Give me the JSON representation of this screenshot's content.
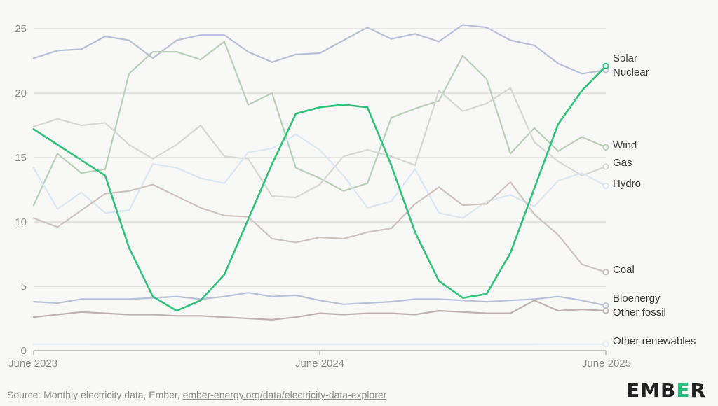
{
  "chart_data": {
    "type": "line",
    "x": [
      "2023-06",
      "2023-07",
      "2023-08",
      "2023-09",
      "2023-10",
      "2023-11",
      "2023-12",
      "2024-01",
      "2024-02",
      "2024-03",
      "2024-04",
      "2024-05",
      "2024-06",
      "2024-07",
      "2024-08",
      "2024-09",
      "2024-10",
      "2024-11",
      "2024-12",
      "2025-01",
      "2025-02",
      "2025-03",
      "2025-04",
      "2025-05",
      "2025-06"
    ],
    "x_tick_labels": [
      "June 2023",
      "June 2024",
      "June 2025"
    ],
    "y_ticks": [
      0,
      5,
      10,
      15,
      20,
      25
    ],
    "ylim": [
      0,
      25.5
    ],
    "grid": true,
    "legend": "inline labels at right end of lines",
    "series": [
      {
        "name": "Nuclear",
        "color": "#b8bfd9",
        "values": [
          22.7,
          23.3,
          23.4,
          24.4,
          24.1,
          22.7,
          24.1,
          24.5,
          24.5,
          23.2,
          22.4,
          23.0,
          23.1,
          24.1,
          25.1,
          24.2,
          24.6,
          24.0,
          25.3,
          25.1,
          24.1,
          23.7,
          22.3,
          21.5,
          21.8
        ]
      },
      {
        "name": "Wind",
        "color": "#b8d0b8",
        "values": [
          11.3,
          15.3,
          13.8,
          14.1,
          21.5,
          23.2,
          23.2,
          22.6,
          24.0,
          19.1,
          20.0,
          14.2,
          13.4,
          12.4,
          13.0,
          18.1,
          18.8,
          19.4,
          22.9,
          21.1,
          15.3,
          17.3,
          15.5,
          16.6,
          15.8
        ]
      },
      {
        "name": "Gas",
        "color": "#d7d7d7",
        "values": [
          17.4,
          18.0,
          17.5,
          17.7,
          16.0,
          14.9,
          16.0,
          17.5,
          15.1,
          14.9,
          12.0,
          11.9,
          12.9,
          15.1,
          15.6,
          15.1,
          14.4,
          20.2,
          18.6,
          19.2,
          20.4,
          16.2,
          14.7,
          13.6,
          14.3
        ]
      },
      {
        "name": "Hydro",
        "color": "#dbe8f3",
        "values": [
          14.2,
          11.0,
          12.3,
          10.7,
          10.9,
          14.5,
          14.2,
          13.4,
          13.0,
          15.4,
          15.7,
          16.8,
          15.6,
          13.6,
          11.1,
          11.6,
          14.1,
          10.7,
          10.3,
          11.6,
          12.1,
          11.2,
          13.2,
          13.8,
          12.8
        ]
      },
      {
        "name": "Coal",
        "color": "#cec3bf",
        "values": [
          10.3,
          9.6,
          10.9,
          12.2,
          12.4,
          12.9,
          12.0,
          11.1,
          10.5,
          10.4,
          8.7,
          8.4,
          8.8,
          8.7,
          9.2,
          9.5,
          11.4,
          12.7,
          11.3,
          11.4,
          13.1,
          10.6,
          9.0,
          6.7,
          6.1
        ]
      },
      {
        "name": "Bioenergy",
        "color": "#b9c1d8",
        "values": [
          3.8,
          3.7,
          4.0,
          4.0,
          4.0,
          4.1,
          4.2,
          4.0,
          4.2,
          4.5,
          4.2,
          4.3,
          3.9,
          3.6,
          3.7,
          3.8,
          4.0,
          4.0,
          3.9,
          3.8,
          3.9,
          4.0,
          4.2,
          3.9,
          3.5
        ]
      },
      {
        "name": "Other fossil",
        "color": "#bdb2af",
        "values": [
          2.6,
          2.8,
          3.0,
          2.9,
          2.8,
          2.8,
          2.7,
          2.7,
          2.6,
          2.5,
          2.4,
          2.6,
          2.9,
          2.8,
          2.9,
          2.9,
          2.8,
          3.1,
          3.0,
          2.9,
          2.9,
          3.9,
          3.1,
          3.2,
          3.1
        ]
      },
      {
        "name": "Other renewables",
        "color": "#e2ebf2",
        "values": [
          0.5,
          0.5,
          0.5,
          0.5,
          0.5,
          0.5,
          0.5,
          0.5,
          0.5,
          0.5,
          0.5,
          0.5,
          0.5,
          0.5,
          0.5,
          0.5,
          0.5,
          0.5,
          0.5,
          0.5,
          0.5,
          0.5,
          0.5,
          0.5,
          0.5
        ]
      },
      {
        "name": "Solar",
        "color": "#2fc27a",
        "values": [
          17.2,
          16.0,
          14.8,
          13.6,
          8.0,
          4.2,
          3.1,
          3.9,
          5.9,
          10.2,
          14.5,
          18.4,
          18.9,
          19.1,
          18.9,
          14.4,
          9.2,
          5.4,
          4.1,
          4.4,
          7.6,
          12.6,
          17.6,
          20.2,
          22.1
        ]
      }
    ]
  },
  "footer": {
    "source_prefix": "Source: Monthly electricity data, Ember, ",
    "source_link": "ember-energy.org/data/electricity-data-explorer",
    "logo_part1": "EMB",
    "logo_accent": "E",
    "logo_part2": "R"
  }
}
